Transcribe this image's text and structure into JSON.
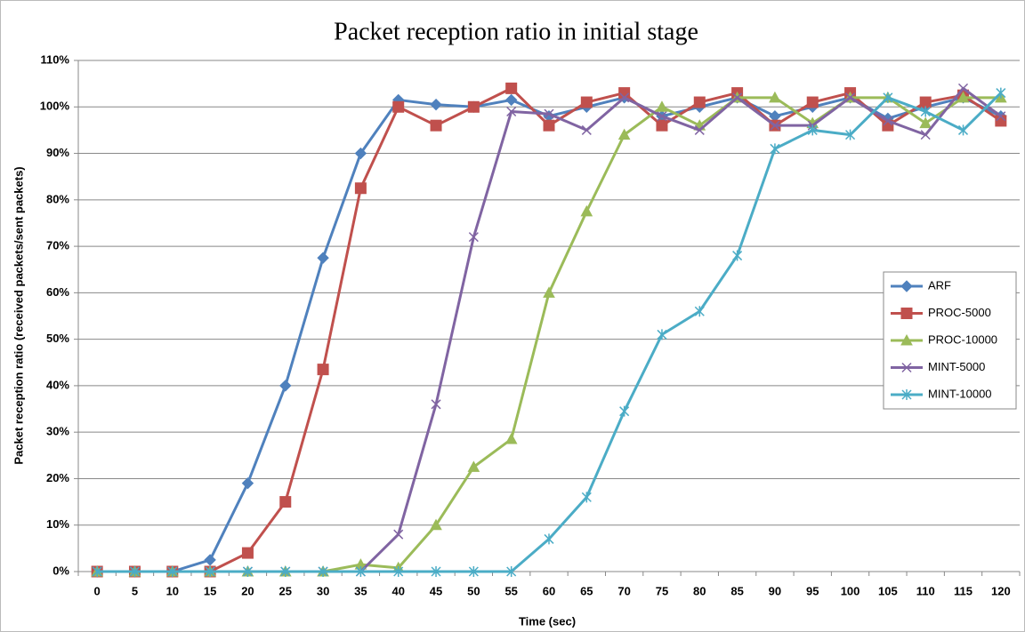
{
  "chart_data": {
    "type": "line",
    "title": "Packet reception ratio in initial stage",
    "x_label": "Time (sec)",
    "y_label": "Packet reception ratio (received packets/sent packets)",
    "categories": [
      0,
      5,
      10,
      15,
      20,
      25,
      30,
      35,
      40,
      45,
      50,
      55,
      60,
      65,
      70,
      75,
      80,
      85,
      90,
      95,
      100,
      105,
      110,
      115,
      120
    ],
    "ylim": [
      0,
      110
    ],
    "yticks": [
      {
        "value": 0,
        "label": "0%"
      },
      {
        "value": 10,
        "label": "10%"
      },
      {
        "value": 20,
        "label": "20%"
      },
      {
        "value": 30,
        "label": "30%"
      },
      {
        "value": 40,
        "label": "40%"
      },
      {
        "value": 50,
        "label": "50%"
      },
      {
        "value": 60,
        "label": "60%"
      },
      {
        "value": 70,
        "label": "70%"
      },
      {
        "value": 80,
        "label": "80%"
      },
      {
        "value": 90,
        "label": "90%"
      },
      {
        "value": 100,
        "label": "100%"
      },
      {
        "value": 110,
        "label": "110%"
      }
    ],
    "grid": true,
    "legend": "right",
    "series": [
      {
        "name": "ARF",
        "color": "#4f81bd",
        "marker": "diamond",
        "values": [
          0,
          0,
          0,
          2.5,
          19,
          40,
          67.5,
          90,
          101.5,
          100.5,
          100,
          101.5,
          98,
          100,
          102,
          98,
          100,
          102,
          98,
          100,
          102,
          97.5,
          100,
          102,
          98
        ]
      },
      {
        "name": "PROC-5000",
        "color": "#c0504d",
        "marker": "square",
        "values": [
          0,
          0,
          0,
          0,
          4,
          15,
          43.5,
          82.5,
          100,
          96,
          100,
          104,
          96,
          101,
          103,
          96,
          101,
          103,
          96,
          101,
          103,
          96,
          101,
          102.5,
          97
        ]
      },
      {
        "name": "PROC-10000",
        "color": "#9bbb59",
        "marker": "triangle",
        "values": [
          0,
          0,
          0,
          0,
          0,
          0,
          0,
          1.5,
          0.8,
          10,
          22.5,
          28.5,
          60,
          77.5,
          94,
          100,
          96,
          102,
          102,
          96.5,
          102,
          102,
          96.5,
          102,
          102
        ]
      },
      {
        "name": "MINT-5000",
        "color": "#8064a2",
        "marker": "x",
        "values": [
          0,
          0,
          0,
          0,
          0,
          0,
          0,
          0,
          8,
          36,
          72,
          99,
          98.5,
          95,
          102,
          98,
          95,
          102,
          96,
          96,
          102,
          97,
          94,
          104,
          98
        ]
      },
      {
        "name": "MINT-10000",
        "color": "#4bacc6",
        "marker": "star",
        "values": [
          0,
          0,
          0,
          0,
          0,
          0,
          0,
          0,
          0,
          0,
          0,
          0,
          7,
          16,
          34.5,
          51,
          56,
          68,
          91,
          95,
          94,
          102,
          99,
          95,
          103
        ]
      }
    ]
  }
}
